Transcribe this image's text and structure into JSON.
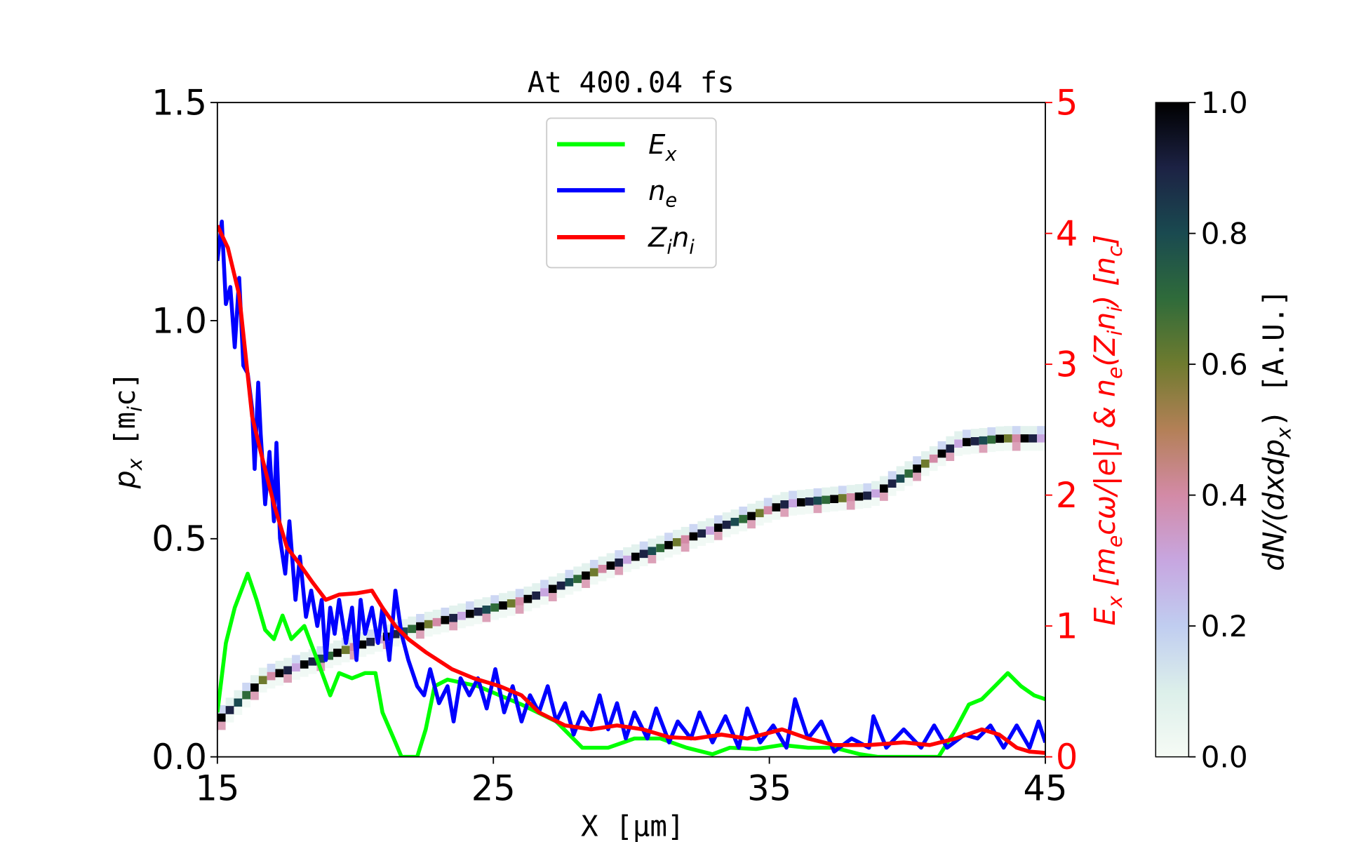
{
  "chart_data": {
    "type": "line",
    "title": "At 400.04 fs",
    "xlabel": {
      "main": "X",
      "unit": "[μm]"
    },
    "ylabel_left": {
      "sym": "p",
      "sub": "x",
      "unit_open": "[m",
      "unit_sub": "i",
      "unit_close": "c]"
    },
    "ylabel_right": {
      "p1": "E",
      "p1sub": "x",
      "p2": " [m",
      "p2sub": "e",
      "p3": "cω/|e|]  &  n",
      "p3sub": "e",
      "p4": "(Z",
      "p4sub": "i",
      "p5": "n",
      "p5sub": "i",
      "p6": ")  [n",
      "p6sub": "c",
      "p7": "]"
    },
    "colorbar_label": {
      "p1": "dN/(dxdp",
      "p1sub": "x",
      "p2": ")  [A.U.]"
    },
    "xlim": [
      15,
      45
    ],
    "ylim_left": [
      0,
      1.5
    ],
    "ylim_right": [
      0,
      5
    ],
    "colorbar_lim": [
      0,
      1
    ],
    "x_ticks": [
      "15",
      "25",
      "35",
      "45"
    ],
    "y_ticks_left": [
      "0.0",
      "0.5",
      "1.0",
      "1.5"
    ],
    "y_ticks_right": [
      "0",
      "1",
      "2",
      "3",
      "4",
      "5"
    ],
    "colorbar_ticks": [
      "0.0",
      "0.2",
      "0.4",
      "0.6",
      "0.8",
      "1.0"
    ],
    "right_axis_color": "#ff0000",
    "grid": false,
    "legend_placement": "upper-center",
    "legend": [
      {
        "sym": "E",
        "sub": "x",
        "sym2": "",
        "sub2": "",
        "color": "#00ff00"
      },
      {
        "sym": "n",
        "sub": "e",
        "sym2": "",
        "sub2": "",
        "color": "#0000ff"
      },
      {
        "sym": "Z",
        "sub": "i",
        "sym2": "n",
        "sub2": "i",
        "color": "#ff0000"
      }
    ],
    "colormap": "cubehelix_r",
    "series": [
      {
        "name": "E_x",
        "axis": "right",
        "color": "#00ff00",
        "x": [
          15,
          15.31,
          15.63,
          16.1,
          16.42,
          16.73,
          17.05,
          17.36,
          17.68,
          18.15,
          18.62,
          19.09,
          19.41,
          19.88,
          20.35,
          20.73,
          20.98,
          21.45,
          21.67,
          22.24,
          22.55,
          22.87,
          23.34,
          24.44,
          26.02,
          27.28,
          28.22,
          29.16,
          30.11,
          31.05,
          32.0,
          32.94,
          33.57,
          34.52,
          35.46,
          36.4,
          37.35,
          38.29,
          38.92,
          41.13,
          41.75,
          42.23,
          42.7,
          43.17,
          43.64,
          44.12,
          44.59,
          45
        ],
        "y": [
          0.34,
          0.87,
          1.14,
          1.4,
          1.2,
          0.97,
          0.9,
          1.08,
          0.9,
          1.0,
          0.74,
          0.47,
          0.64,
          0.6,
          0.64,
          0.64,
          0.34,
          0.11,
          0,
          0,
          0.21,
          0.54,
          0.59,
          0.54,
          0.4,
          0.27,
          0.07,
          0.07,
          0.14,
          0.14,
          0.07,
          0.02,
          0.07,
          0.06,
          0.09,
          0.07,
          0.07,
          0.02,
          0,
          0,
          0.21,
          0.4,
          0.44,
          0.54,
          0.64,
          0.54,
          0.47,
          0.44
        ]
      },
      {
        "name": "n_e",
        "axis": "right",
        "color": "#0000ff",
        "x": [
          15,
          15.16,
          15.31,
          15.47,
          15.63,
          15.79,
          15.94,
          16.1,
          16.26,
          16.35,
          16.48,
          16.57,
          16.73,
          16.89,
          17.05,
          17.14,
          17.27,
          17.46,
          17.61,
          17.83,
          17.99,
          18.21,
          18.4,
          18.62,
          18.78,
          18.93,
          19.09,
          19.25,
          19.41,
          19.66,
          19.88,
          20.04,
          20.19,
          20.35,
          20.6,
          20.82,
          20.98,
          21.23,
          21.45,
          21.67,
          21.92,
          22.24,
          22.49,
          22.71,
          23.03,
          23.34,
          23.56,
          23.81,
          24.13,
          24.44,
          24.76,
          25.07,
          25.39,
          25.7,
          26.02,
          26.33,
          26.65,
          26.97,
          27.28,
          27.6,
          27.91,
          28.22,
          28.54,
          28.85,
          29.16,
          29.48,
          29.8,
          30.11,
          30.58,
          30.9,
          31.37,
          31.68,
          32.16,
          32.47,
          32.94,
          33.41,
          33.89,
          34.2,
          34.67,
          35.14,
          35.62,
          35.93,
          36.4,
          36.88,
          37.35,
          37.98,
          38.61,
          38.77,
          39.24,
          39.87,
          40.5,
          40.97,
          41.44,
          42.07,
          42.54,
          43.01,
          43.49,
          43.96,
          44.43,
          44.75,
          45
        ],
        "y": [
          3.79,
          4.09,
          3.46,
          3.59,
          3.13,
          3.66,
          2.99,
          2.93,
          2.66,
          2.2,
          2.86,
          2.46,
          1.93,
          2.33,
          1.8,
          2.4,
          1.67,
          1.4,
          1.8,
          1.2,
          1.53,
          1.07,
          1.27,
          1.0,
          1.2,
          0.74,
          1.14,
          0.94,
          1.2,
          0.87,
          1.14,
          0.74,
          1.2,
          0.94,
          1.14,
          0.87,
          1.14,
          0.74,
          1.27,
          0.94,
          0.74,
          0.54,
          0.47,
          0.67,
          0.41,
          0.54,
          0.27,
          0.6,
          0.47,
          0.6,
          0.37,
          0.67,
          0.34,
          0.54,
          0.27,
          0.47,
          0.34,
          0.54,
          0.27,
          0.41,
          0.17,
          0.34,
          0.24,
          0.47,
          0.21,
          0.41,
          0.14,
          0.34,
          0.14,
          0.37,
          0.11,
          0.27,
          0.14,
          0.34,
          0.11,
          0.31,
          0.07,
          0.37,
          0.11,
          0.24,
          0.07,
          0.44,
          0.14,
          0.27,
          0.04,
          0.14,
          0.07,
          0.31,
          0.07,
          0.21,
          0.07,
          0.24,
          0.07,
          0.17,
          0.14,
          0.24,
          0.07,
          0.24,
          0.07,
          0.27,
          0.11
        ]
      },
      {
        "name": "Z_i n_i",
        "axis": "right",
        "color": "#ff0000",
        "x": [
          15,
          15.38,
          15.79,
          16.26,
          16.57,
          17.05,
          17.52,
          17.99,
          18.46,
          18.93,
          19.41,
          20.04,
          20.6,
          20.98,
          21.45,
          21.92,
          22.55,
          23.5,
          24.29,
          25.23,
          26.02,
          26.65,
          27.6,
          28.54,
          29.48,
          30.42,
          31.37,
          32.31,
          33.26,
          34.2,
          35.46,
          36.4,
          37.35,
          38.61,
          39.87,
          40.81,
          41.75,
          42.7,
          43.33,
          43.96,
          44.43,
          45
        ],
        "y": [
          4.06,
          3.89,
          3.53,
          2.6,
          2.33,
          1.93,
          1.6,
          1.47,
          1.33,
          1.2,
          1.24,
          1.25,
          1.27,
          1.14,
          1.0,
          0.9,
          0.8,
          0.67,
          0.6,
          0.54,
          0.47,
          0.34,
          0.24,
          0.21,
          0.24,
          0.21,
          0.15,
          0.14,
          0.17,
          0.14,
          0.21,
          0.14,
          0.09,
          0.09,
          0.11,
          0.09,
          0.14,
          0.21,
          0.17,
          0.07,
          0.04,
          0.03
        ]
      }
    ],
    "phase_space_ridge": {
      "axis": "left",
      "x": [
        15,
        16.57,
        19.72,
        22.24,
        26.02,
        29.16,
        32.31,
        35.46,
        38.6,
        40.18,
        41.75,
        43.33,
        45
      ],
      "p_x": [
        0.09,
        0.18,
        0.25,
        0.3,
        0.36,
        0.44,
        0.51,
        0.58,
        0.6,
        0.66,
        0.72,
        0.73,
        0.73
      ]
    }
  }
}
